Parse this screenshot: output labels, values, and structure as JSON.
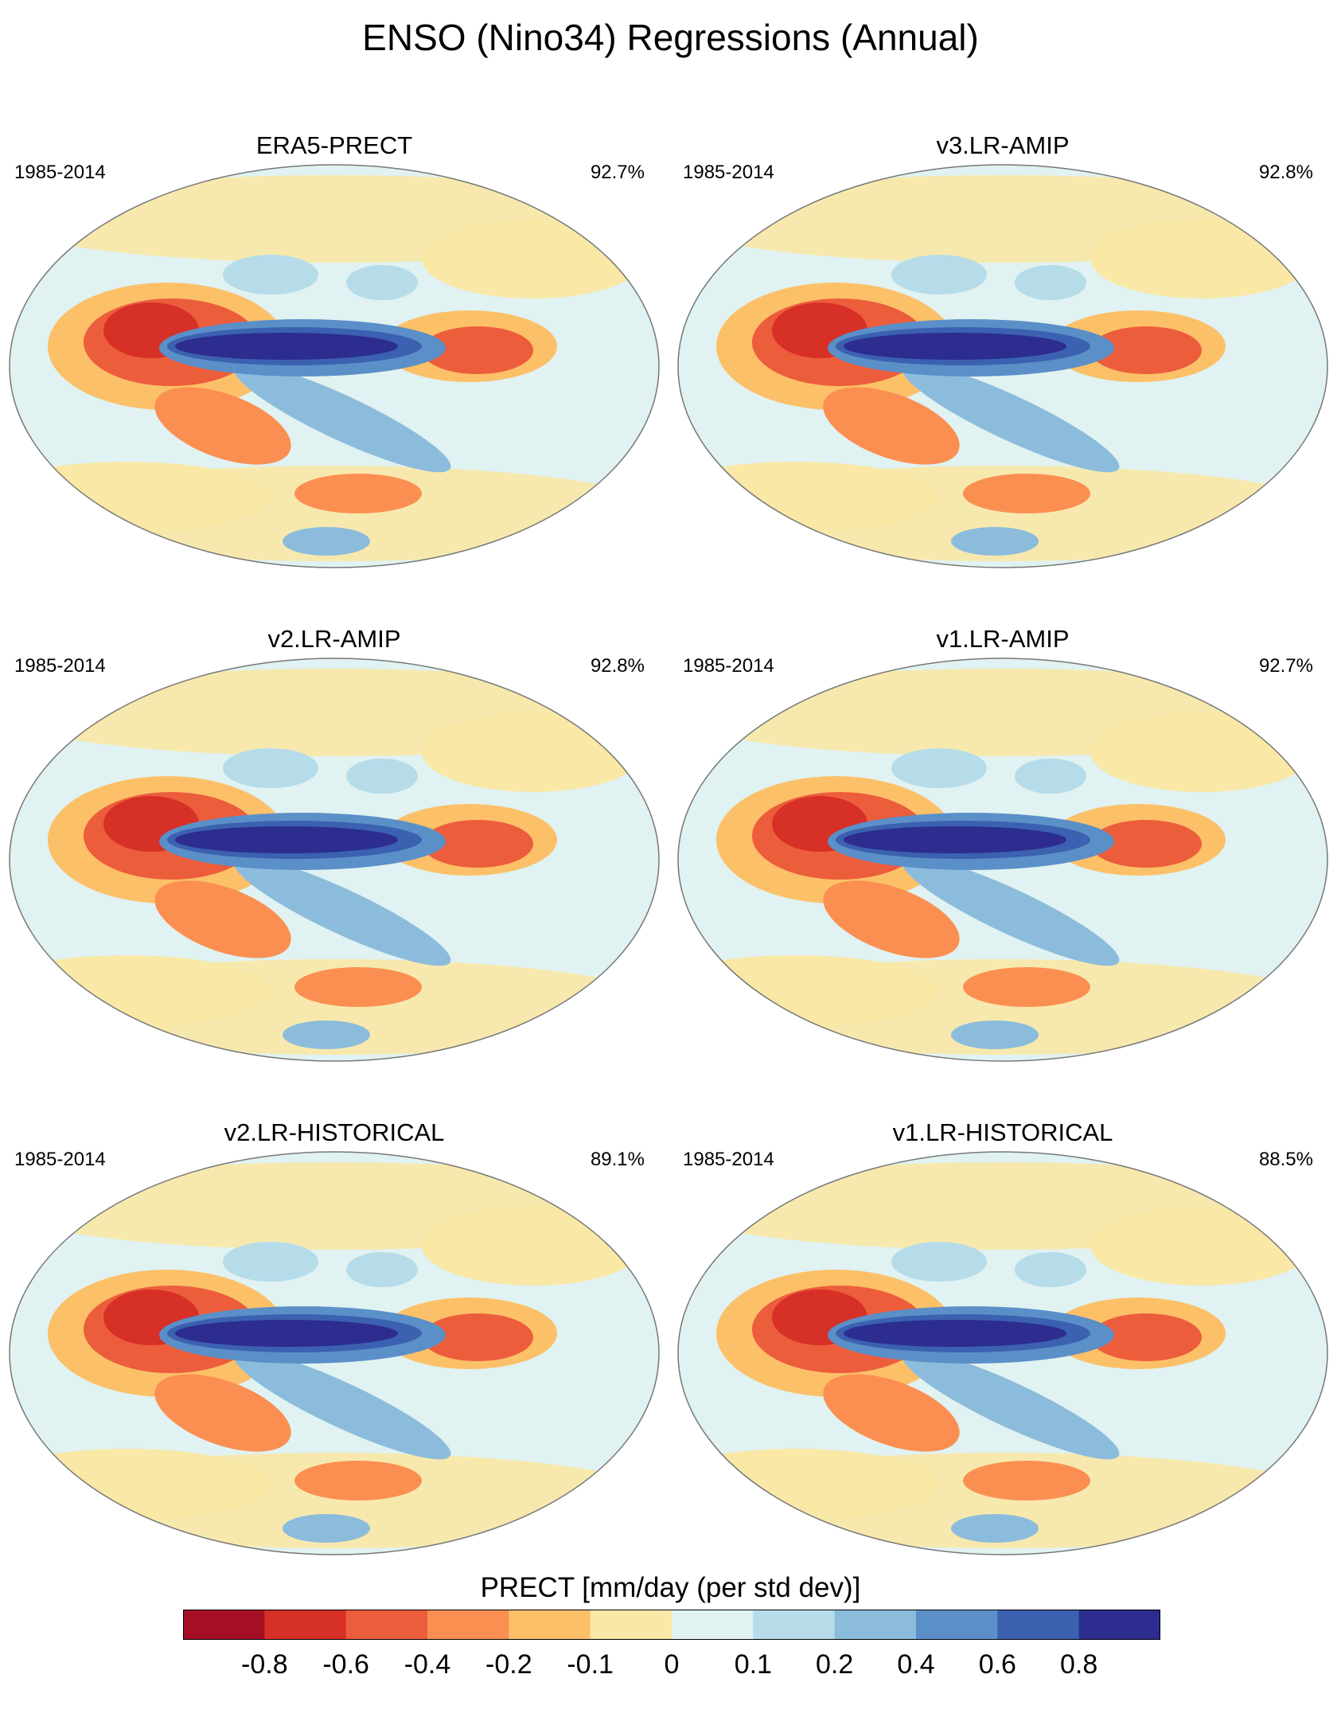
{
  "chart_data": {
    "type": "map-grid",
    "title": "ENSO (Nino34) Regressions (Annual)",
    "projection": "robinson",
    "panels": [
      {
        "name": "ERA5-PRECT",
        "period": "1985-2014",
        "percent": "92.7%"
      },
      {
        "name": "v3.LR-AMIP",
        "period": "1985-2014",
        "percent": "92.8%"
      },
      {
        "name": "v2.LR-AMIP",
        "period": "1985-2014",
        "percent": "92.8%"
      },
      {
        "name": "v1.LR-AMIP",
        "period": "1985-2014",
        "percent": "92.7%"
      },
      {
        "name": "v2.LR-HISTORICAL",
        "period": "1985-2014",
        "percent": "89.1%"
      },
      {
        "name": "v1.LR-HISTORICAL",
        "period": "1985-2014",
        "percent": "88.5%"
      }
    ],
    "colorbar": {
      "label": "PRECT [mm/day (per std dev)]",
      "ticks": [
        "-0.8",
        "-0.6",
        "-0.4",
        "-0.2",
        "-0.1",
        "0",
        "0.1",
        "0.2",
        "0.4",
        "0.6",
        "0.8"
      ],
      "colors": [
        "#a50f25",
        "#d73027",
        "#ec5d3c",
        "#fb8f52",
        "#fcc068",
        "#f9e8a6",
        "#e0f2f1",
        "#b6dcea",
        "#8cbcdc",
        "#5b8fc8",
        "#3b61b0",
        "#2c2d8e"
      ]
    }
  }
}
